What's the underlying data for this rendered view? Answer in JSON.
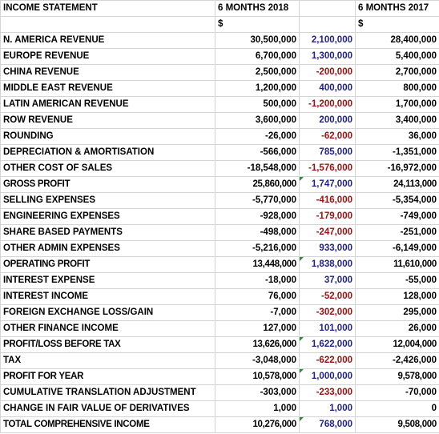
{
  "header": {
    "title": "INCOME STATEMENT",
    "col_2018": "6 MONTHS 2018",
    "col_diff": "",
    "col_2017": "6 MONTHS 2017",
    "currency_2018": "$",
    "currency_2017": "$"
  },
  "rows": [
    {
      "label": "N. AMERICA REVENUE",
      "v2018": "30,500,000",
      "diff": "2,100,000",
      "v2017": "28,400,000",
      "diff_sign": "pos",
      "bold": false,
      "flag": false
    },
    {
      "label": "EUROPE REVENUE",
      "v2018": "6,700,000",
      "diff": "1,300,000",
      "v2017": "5,400,000",
      "diff_sign": "pos",
      "bold": false,
      "flag": false
    },
    {
      "label": "CHINA REVENUE",
      "v2018": "2,500,000",
      "diff": "-200,000",
      "v2017": "2,700,000",
      "diff_sign": "neg",
      "bold": false,
      "flag": false
    },
    {
      "label": "MIDDLE EAST REVENUE",
      "v2018": "1,200,000",
      "diff": "400,000",
      "v2017": "800,000",
      "diff_sign": "pos",
      "bold": false,
      "flag": false
    },
    {
      "label": "LATIN AMERICAN REVENUE",
      "v2018": "500,000",
      "diff": "-1,200,000",
      "v2017": "1,700,000",
      "diff_sign": "neg",
      "bold": false,
      "flag": false
    },
    {
      "label": "ROW REVENUE",
      "v2018": "3,600,000",
      "diff": "200,000",
      "v2017": "3,400,000",
      "diff_sign": "pos",
      "bold": false,
      "flag": false
    },
    {
      "label": "ROUNDING",
      "v2018": "-26,000",
      "diff": "-62,000",
      "v2017": "36,000",
      "diff_sign": "neg",
      "bold": false,
      "flag": false
    },
    {
      "label": "DEPRECIATION & AMORTISATION",
      "v2018": "-566,000",
      "diff": "785,000",
      "v2017": "-1,351,000",
      "diff_sign": "pos",
      "bold": false,
      "flag": false
    },
    {
      "label": "OTHER COST OF SALES",
      "v2018": "-18,548,000",
      "diff": "-1,576,000",
      "v2017": "-16,972,000",
      "diff_sign": "neg",
      "bold": false,
      "flag": false
    },
    {
      "label": "GROSS PROFIT",
      "v2018": "25,860,000",
      "diff": "1,747,000",
      "v2017": "24,113,000",
      "diff_sign": "pos",
      "bold": true,
      "flag": true
    },
    {
      "label": "SELLING EXPENSES",
      "v2018": "-5,770,000",
      "diff": "-416,000",
      "v2017": "-5,354,000",
      "diff_sign": "neg",
      "bold": false,
      "flag": false
    },
    {
      "label": "ENGINEERING EXPENSES",
      "v2018": "-928,000",
      "diff": "-179,000",
      "v2017": "-749,000",
      "diff_sign": "neg",
      "bold": false,
      "flag": false
    },
    {
      "label": "SHARE BASED PAYMENTS",
      "v2018": "-498,000",
      "diff": "-247,000",
      "v2017": "-251,000",
      "diff_sign": "neg",
      "bold": false,
      "flag": false
    },
    {
      "label": "OTHER ADMIN EXPENSES",
      "v2018": "-5,216,000",
      "diff": "933,000",
      "v2017": "-6,149,000",
      "diff_sign": "pos",
      "bold": false,
      "flag": false
    },
    {
      "label": "OPERATING PROFIT",
      "v2018": "13,448,000",
      "diff": "1,838,000",
      "v2017": "11,610,000",
      "diff_sign": "pos",
      "bold": true,
      "flag": true
    },
    {
      "label": "INTEREST EXPENSE",
      "v2018": "-18,000",
      "diff": "37,000",
      "v2017": "-55,000",
      "diff_sign": "pos",
      "bold": false,
      "flag": false
    },
    {
      "label": "INTEREST INCOME",
      "v2018": "76,000",
      "diff": "-52,000",
      "v2017": "128,000",
      "diff_sign": "neg",
      "bold": false,
      "flag": false
    },
    {
      "label": "FOREIGN EXCHANGE LOSS/GAIN",
      "v2018": "-7,000",
      "diff": "-302,000",
      "v2017": "295,000",
      "diff_sign": "neg",
      "bold": false,
      "flag": false
    },
    {
      "label": "OTHER FINANCE INCOME",
      "v2018": "127,000",
      "diff": "101,000",
      "v2017": "26,000",
      "diff_sign": "pos",
      "bold": false,
      "flag": false
    },
    {
      "label": "PROFIT/LOSS BEFORE TAX",
      "v2018": "13,626,000",
      "diff": "1,622,000",
      "v2017": "12,004,000",
      "diff_sign": "pos",
      "bold": true,
      "flag": true
    },
    {
      "label": "TAX",
      "v2018": "-3,048,000",
      "diff": "-622,000",
      "v2017": "-2,426,000",
      "diff_sign": "neg",
      "bold": false,
      "flag": false
    },
    {
      "label": "PROFIT FOR YEAR",
      "v2018": "10,578,000",
      "diff": "1,000,000",
      "v2017": "9,578,000",
      "diff_sign": "pos",
      "bold": true,
      "flag": true
    },
    {
      "label": "CUMULATIVE TRANSLATION ADJUSTMENT",
      "v2018": "-303,000",
      "diff": "-233,000",
      "v2017": "-70,000",
      "diff_sign": "neg",
      "bold": false,
      "flag": false
    },
    {
      "label": "CHANGE IN FAIR VALUE OF DERIVATIVES",
      "v2018": "1,000",
      "diff": "1,000",
      "v2017": "0",
      "diff_sign": "pos",
      "bold": false,
      "flag": false
    },
    {
      "label": "TOTAL COMPREHENSIVE INCOME",
      "v2018": "10,276,000",
      "diff": "768,000",
      "v2017": "9,508,000",
      "diff_sign": "pos",
      "bold": true,
      "flag": true
    }
  ],
  "colors": {
    "positive_diff": "#1f1f8f",
    "negative_diff": "#a01010",
    "formula_flag": "#2e8b2e"
  }
}
